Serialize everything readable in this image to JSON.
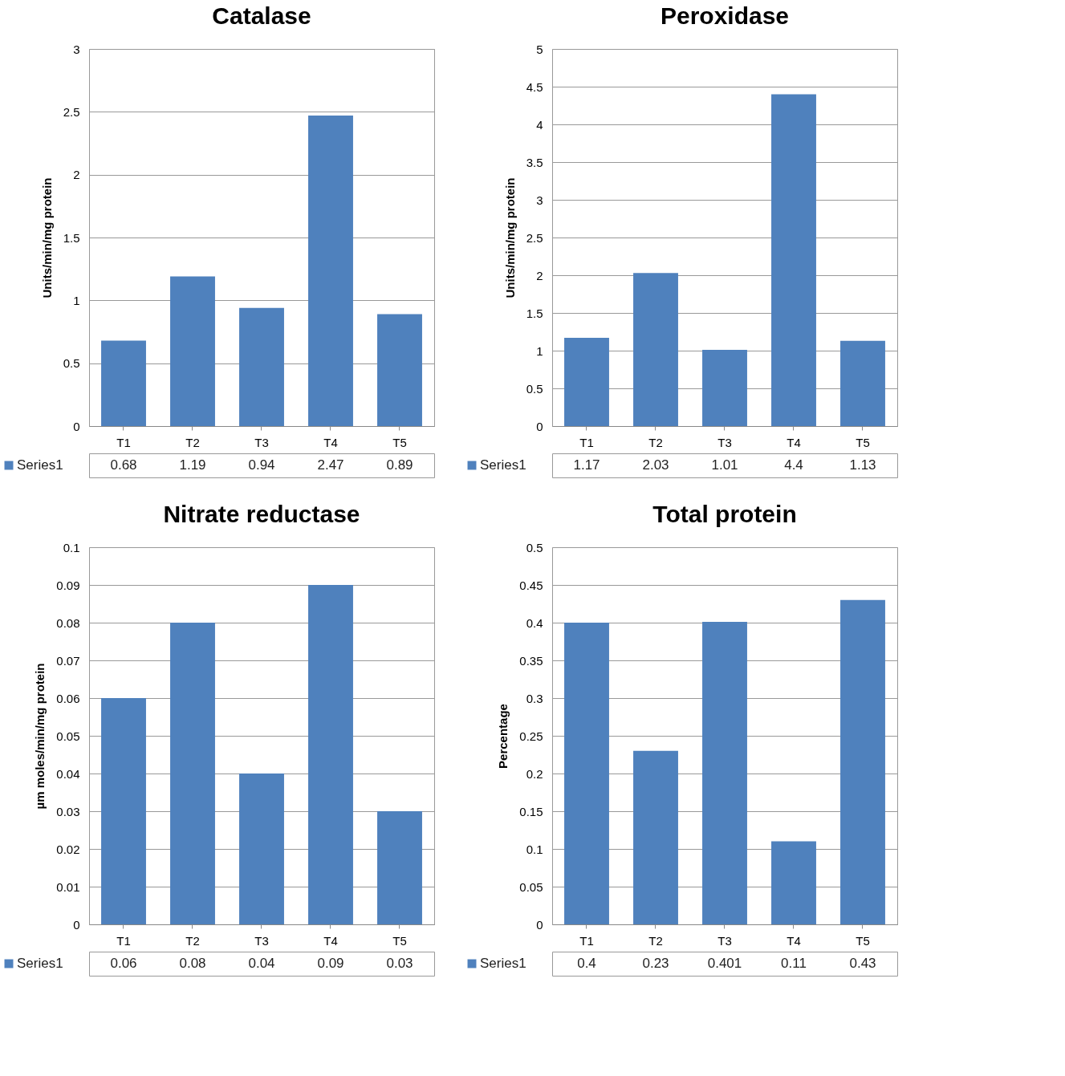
{
  "chart_data": [
    {
      "type": "bar",
      "title": "Catalase",
      "ylabel": "Units/min/mg protein",
      "categories": [
        "T1",
        "T2",
        "T3",
        "T4",
        "T5"
      ],
      "series": [
        {
          "name": "Series1",
          "color": "#4f81bd",
          "values": [
            0.68,
            1.19,
            0.94,
            2.47,
            0.89
          ]
        }
      ],
      "ylim": [
        0,
        3
      ],
      "yticks": [
        0,
        0.5,
        1,
        1.5,
        2,
        2.5,
        3
      ],
      "grid": "y",
      "legend": "bottom left",
      "data_labels": true
    },
    {
      "type": "bar",
      "title": "Peroxidase",
      "ylabel": "Units/min/mg protein",
      "categories": [
        "T1",
        "T2",
        "T3",
        "T4",
        "T5"
      ],
      "series": [
        {
          "name": "Series1",
          "color": "#4f81bd",
          "values": [
            1.17,
            2.03,
            1.01,
            4.4,
            1.13
          ]
        }
      ],
      "ylim": [
        0,
        5
      ],
      "yticks": [
        0,
        0.5,
        1,
        1.5,
        2,
        2.5,
        3,
        3.5,
        4,
        4.5,
        5
      ],
      "grid": "y",
      "legend": "bottom left",
      "data_labels": true
    },
    {
      "type": "bar",
      "title": "Nitrate reductase",
      "ylabel": "µm moles/min/mg protein",
      "categories": [
        "T1",
        "T2",
        "T3",
        "T4",
        "T5"
      ],
      "series": [
        {
          "name": "Series1",
          "color": "#4f81bd",
          "values": [
            0.06,
            0.08,
            0.04,
            0.09,
            0.03
          ]
        }
      ],
      "ylim": [
        0,
        0.1
      ],
      "yticks": [
        0,
        0.01,
        0.02,
        0.03,
        0.04,
        0.05,
        0.06,
        0.07,
        0.08,
        0.09,
        0.1
      ],
      "grid": "y",
      "legend": "bottom left",
      "data_labels": true
    },
    {
      "type": "bar",
      "title": "Total protein",
      "ylabel": "Percentage",
      "categories": [
        "T1",
        "T2",
        "T3",
        "T4",
        "T5"
      ],
      "series": [
        {
          "name": "Series1",
          "color": "#4f81bd",
          "values": [
            0.4,
            0.23,
            0.401,
            0.11,
            0.43
          ]
        }
      ],
      "ylim": [
        0,
        0.5
      ],
      "yticks": [
        0,
        0.05,
        0.1,
        0.15,
        0.2,
        0.25,
        0.3,
        0.35,
        0.4,
        0.45,
        0.5
      ],
      "grid": "y",
      "legend": "bottom left",
      "data_labels": true
    }
  ]
}
